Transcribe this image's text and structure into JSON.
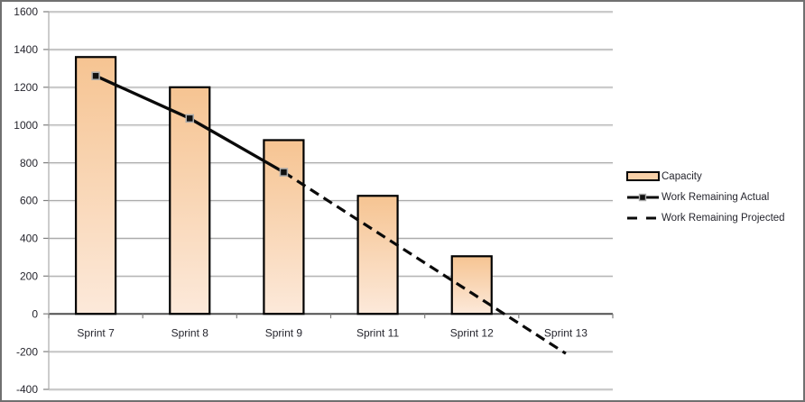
{
  "chart_data": {
    "type": "combo",
    "title": "",
    "xlabel": "",
    "ylabel": "",
    "categories": [
      "Sprint 7",
      "Sprint 8",
      "Sprint 9",
      "Sprint 11",
      "Sprint 12",
      "Sprint 13"
    ],
    "series": [
      {
        "name": "Capacity",
        "type": "bar",
        "values": [
          1360,
          1200,
          920,
          625,
          305,
          null
        ]
      },
      {
        "name": "Work Remaining Actual",
        "type": "line",
        "line_style": "solid",
        "marker": "square",
        "values": [
          1260,
          1035,
          750,
          null,
          null,
          null
        ]
      },
      {
        "name": "Work Remaining Projected",
        "type": "line",
        "line_style": "dashed",
        "marker": "none",
        "values": [
          null,
          null,
          750,
          430,
          110,
          -210
        ]
      }
    ],
    "ylim": [
      -400,
      1600
    ],
    "ytick_step": 200,
    "ytick_labels": [
      "-400",
      "-200",
      "0",
      "200",
      "400",
      "600",
      "800",
      "1000",
      "1200",
      "1400",
      "1600"
    ],
    "grid": true,
    "legend_position": "right",
    "colors": {
      "bar_fill_top": "#F6C492",
      "bar_fill_bottom": "#FCE9DA",
      "bar_border": "#000000",
      "actual_line": "#0a0a0a",
      "projected_line": "#0a0a0a",
      "marker_fill": "#101010",
      "marker_border": "#ABABAB",
      "gridline": "#ABABAB",
      "gridline_highlight": "#E7E7E7",
      "zero_axis": "#4F4F4F",
      "tick": "#7F7F7F",
      "axis_text": "#26262e",
      "legend_swatch_fill": "#F8D0A8",
      "chart_border": "#707070",
      "background": "#FFFFFF"
    }
  }
}
